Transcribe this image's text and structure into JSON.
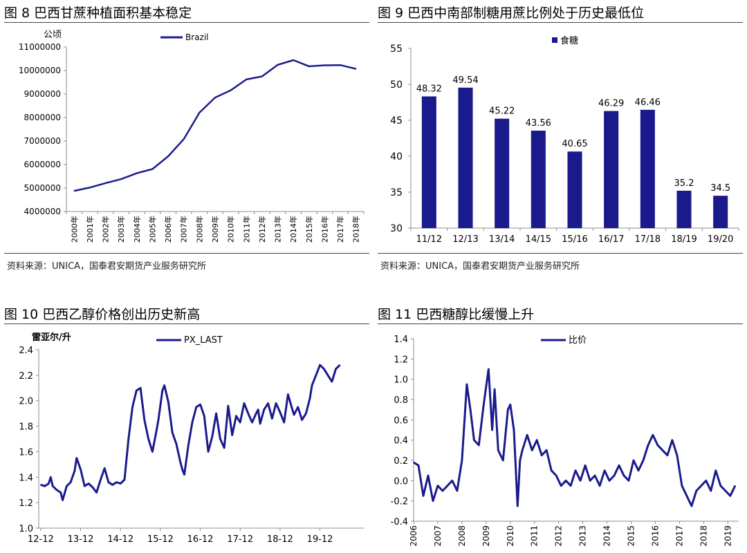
{
  "colors": {
    "series": "#1a1a8c",
    "axis": "#8c8c8c"
  },
  "panels": {
    "p8": {
      "title": "图 8 巴西甘蔗种植面积基本稳定",
      "source": "资料来源：UNICA，国泰君安期货产业服务研究所"
    },
    "p9": {
      "title": "图 9 巴西中南部制糖用蔗比例处于历史最低位",
      "source": "资料来源：UNICA，国泰君安期货产业服务研究所"
    },
    "p10": {
      "title": "图 10  巴西乙醇价格创出历史新高",
      "source": ""
    },
    "p11": {
      "title": "图 11  巴西糖醇比缓慢上升",
      "source": ""
    }
  },
  "chart_data": [
    {
      "id": "c8",
      "type": "line",
      "ylabel": "公顷",
      "ylim": [
        4000000,
        11000000
      ],
      "yticks": [
        "4000000",
        "5000000",
        "6000000",
        "7000000",
        "8000000",
        "9000000",
        "10000000",
        "11000000"
      ],
      "categories": [
        "2000年",
        "2001年",
        "2002年",
        "2003年",
        "2004年",
        "2005年",
        "2006年",
        "2007年",
        "2008年",
        "2009年",
        "2010年",
        "2011年",
        "2012年",
        "2013年",
        "2014年",
        "2015年",
        "2016年",
        "2017年",
        "2018年"
      ],
      "series": [
        {
          "name": "Brazil",
          "values": [
            4880000,
            5020000,
            5210000,
            5380000,
            5630000,
            5810000,
            6350000,
            7080000,
            8210000,
            8850000,
            9160000,
            9620000,
            9750000,
            10240000,
            10440000,
            10180000,
            10220000,
            10230000,
            10070000
          ]
        }
      ],
      "legend_position": "top"
    },
    {
      "id": "c9",
      "type": "bar",
      "ylim": [
        30,
        55
      ],
      "yticks": [
        "30",
        "35",
        "40",
        "45",
        "50",
        "55"
      ],
      "categories": [
        "11/12",
        "12/13",
        "13/14",
        "14/15",
        "15/16",
        "16/17",
        "17/18",
        "18/19",
        "19/20"
      ],
      "series": [
        {
          "name": "食糖",
          "values": [
            48.32,
            49.54,
            45.22,
            43.56,
            40.65,
            46.29,
            46.46,
            35.2,
            34.5
          ],
          "labels": [
            "48.32",
            "49.54",
            "45.22",
            "43.56",
            "40.65",
            "46.29",
            "46.46",
            "35.2",
            "34.5"
          ]
        }
      ],
      "legend_position": "top"
    },
    {
      "id": "c10",
      "type": "line",
      "ylabel": "雷亚尔/升",
      "ylim": [
        1.0,
        2.4
      ],
      "yticks": [
        "1.0",
        "1.2",
        "1.4",
        "1.6",
        "1.8",
        "2.0",
        "2.2",
        "2.4"
      ],
      "xticks": [
        "12-12",
        "13-12",
        "14-12",
        "15-12",
        "16-12",
        "17-12",
        "18-12",
        "19-12"
      ],
      "xtick_values": [
        0,
        1,
        2,
        3,
        4,
        5,
        6,
        7
      ],
      "series": [
        {
          "name": "PX_LAST",
          "x": [
            0.0,
            0.1,
            0.2,
            0.25,
            0.3,
            0.4,
            0.5,
            0.55,
            0.65,
            0.75,
            0.85,
            0.9,
            1.0,
            1.1,
            1.2,
            1.3,
            1.4,
            1.5,
            1.6,
            1.7,
            1.8,
            1.9,
            2.0,
            2.1,
            2.2,
            2.3,
            2.4,
            2.5,
            2.6,
            2.7,
            2.8,
            2.9,
            2.95,
            3.05,
            3.1,
            3.2,
            3.3,
            3.4,
            3.5,
            3.55,
            3.6,
            3.7,
            3.8,
            3.9,
            4.0,
            4.1,
            4.2,
            4.3,
            4.4,
            4.5,
            4.6,
            4.7,
            4.8,
            4.9,
            5.0,
            5.1,
            5.2,
            5.3,
            5.4,
            5.45,
            5.5,
            5.6,
            5.7,
            5.8,
            5.9,
            6.0,
            6.1,
            6.2,
            6.3,
            6.35,
            6.45,
            6.55,
            6.65,
            6.75,
            6.8,
            6.9,
            7.0,
            7.1,
            7.2,
            7.3,
            7.4,
            7.5
          ],
          "values": [
            1.34,
            1.33,
            1.35,
            1.4,
            1.33,
            1.3,
            1.28,
            1.22,
            1.33,
            1.36,
            1.45,
            1.55,
            1.46,
            1.33,
            1.35,
            1.32,
            1.28,
            1.38,
            1.47,
            1.36,
            1.34,
            1.36,
            1.35,
            1.38,
            1.7,
            1.95,
            2.08,
            2.1,
            1.85,
            1.7,
            1.6,
            1.76,
            1.85,
            2.08,
            2.12,
            1.99,
            1.75,
            1.66,
            1.52,
            1.46,
            1.42,
            1.65,
            1.83,
            1.95,
            1.97,
            1.88,
            1.6,
            1.72,
            1.9,
            1.7,
            1.63,
            1.96,
            1.73,
            1.88,
            1.83,
            1.98,
            1.9,
            1.83,
            1.9,
            1.93,
            1.82,
            1.93,
            1.98,
            1.86,
            1.98,
            1.91,
            1.83,
            2.05,
            1.94,
            1.89,
            1.95,
            1.85,
            1.9,
            2.02,
            2.12,
            2.2,
            2.28,
            2.25,
            2.2,
            2.15,
            2.25,
            2.28
          ]
        }
      ],
      "legend_position": "top"
    },
    {
      "id": "c11",
      "type": "line",
      "ylim": [
        -0.4,
        1.4
      ],
      "yticks": [
        "-0.4",
        "-0.2",
        "0.0",
        "0.2",
        "0.4",
        "0.6",
        "0.8",
        "1.0",
        "1.2",
        "1.4"
      ],
      "xticks": [
        "2006",
        "2007",
        "2008",
        "2009",
        "2010",
        "2011",
        "2012",
        "2013",
        "2014",
        "2015",
        "2016",
        "2017",
        "2018",
        "2019"
      ],
      "xtick_values": [
        2006,
        2007,
        2008,
        2009,
        2010,
        2011,
        2012,
        2013,
        2014,
        2015,
        2016,
        2017,
        2018,
        2019
      ],
      "series": [
        {
          "name": "比价",
          "x": [
            2006.0,
            2006.2,
            2006.4,
            2006.6,
            2006.8,
            2007.0,
            2007.2,
            2007.4,
            2007.6,
            2007.8,
            2008.0,
            2008.2,
            2008.35,
            2008.5,
            2008.7,
            2008.9,
            2009.1,
            2009.25,
            2009.35,
            2009.5,
            2009.7,
            2009.9,
            2010.0,
            2010.15,
            2010.3,
            2010.4,
            2010.5,
            2010.7,
            2010.9,
            2011.1,
            2011.3,
            2011.5,
            2011.7,
            2011.9,
            2012.1,
            2012.3,
            2012.5,
            2012.7,
            2012.9,
            2013.1,
            2013.3,
            2013.5,
            2013.7,
            2013.9,
            2014.1,
            2014.3,
            2014.5,
            2014.7,
            2014.9,
            2015.1,
            2015.3,
            2015.5,
            2015.7,
            2015.9,
            2016.1,
            2016.3,
            2016.5,
            2016.7,
            2016.9,
            2017.1,
            2017.3,
            2017.5,
            2017.7,
            2017.9,
            2018.1,
            2018.3,
            2018.5,
            2018.7,
            2018.9,
            2019.1,
            2019.3
          ],
          "values": [
            0.18,
            0.15,
            -0.15,
            0.05,
            -0.2,
            -0.05,
            -0.1,
            -0.05,
            0.0,
            -0.1,
            0.2,
            0.95,
            0.7,
            0.4,
            0.35,
            0.75,
            1.1,
            0.5,
            0.9,
            0.3,
            0.2,
            0.7,
            0.75,
            0.5,
            -0.25,
            0.2,
            0.3,
            0.45,
            0.3,
            0.4,
            0.25,
            0.3,
            0.1,
            0.05,
            -0.05,
            0.0,
            -0.05,
            0.1,
            0.0,
            0.15,
            0.0,
            0.05,
            -0.05,
            0.1,
            0.0,
            0.05,
            0.15,
            0.05,
            0.0,
            0.2,
            0.1,
            0.2,
            0.35,
            0.45,
            0.35,
            0.3,
            0.25,
            0.4,
            0.25,
            -0.05,
            -0.15,
            -0.25,
            -0.1,
            -0.05,
            0.0,
            -0.1,
            0.1,
            -0.05,
            -0.1,
            -0.15,
            -0.05
          ]
        }
      ],
      "legend_position": "top"
    }
  ]
}
